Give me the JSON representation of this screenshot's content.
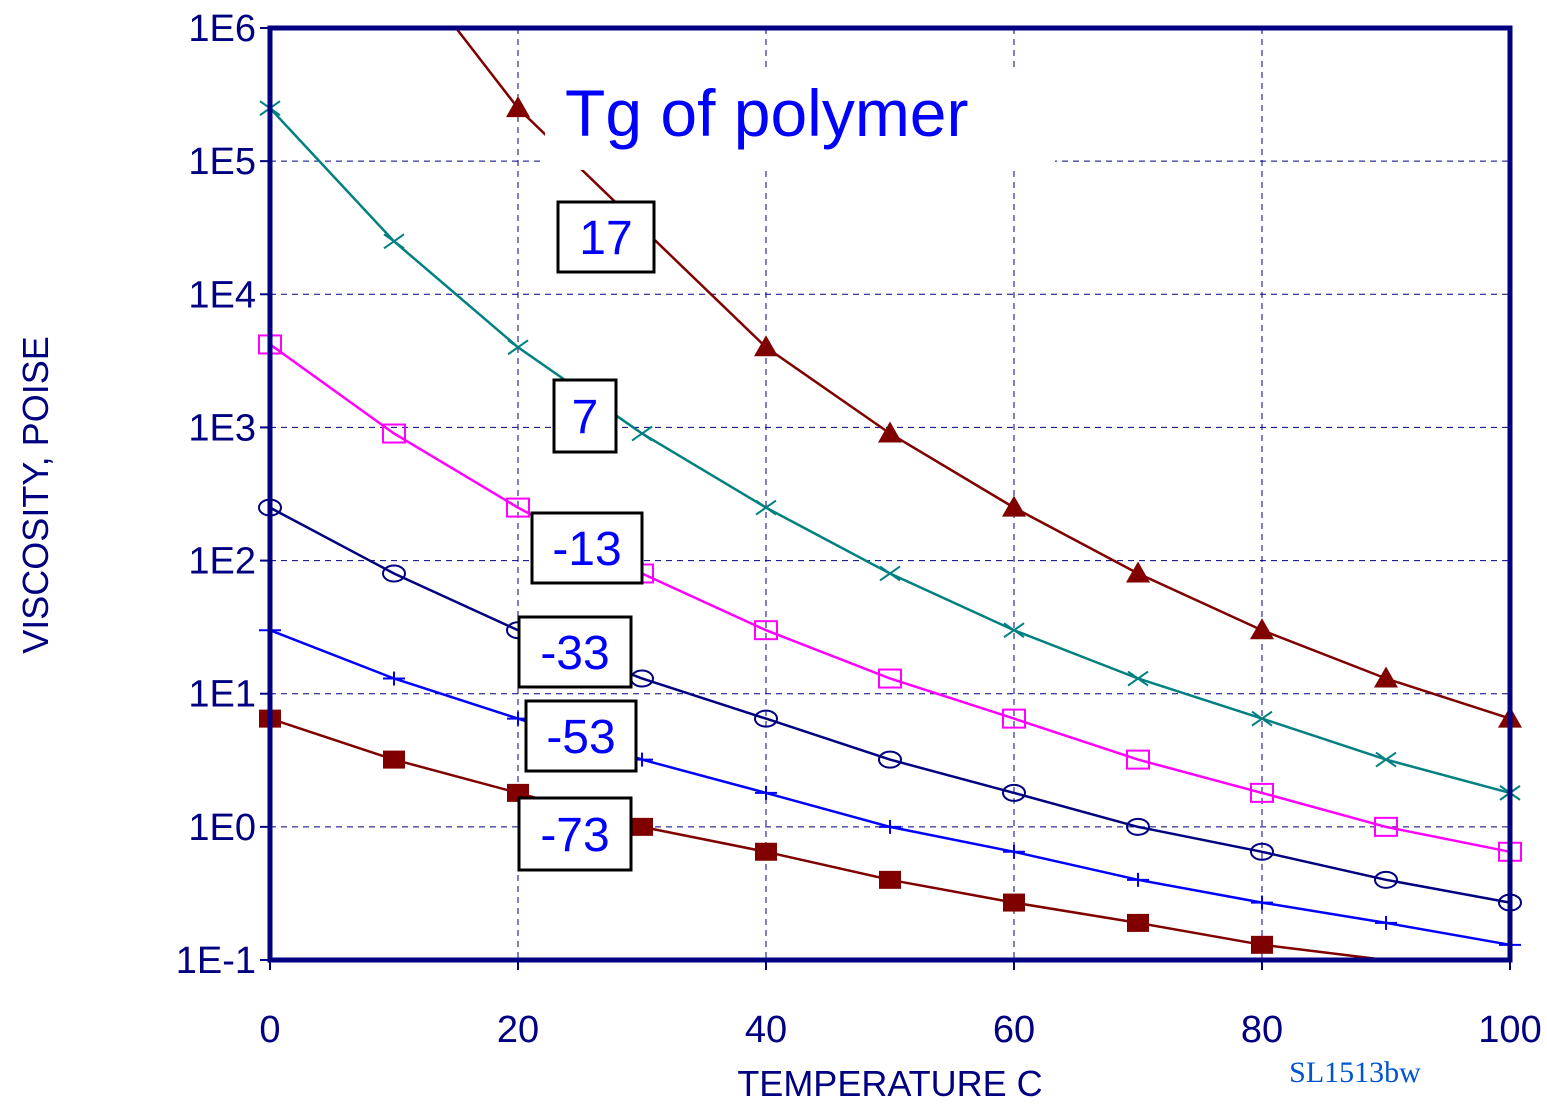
{
  "chart_data": {
    "type": "line",
    "title": "",
    "annotation": "Tg of polymer",
    "xlabel": "TEMPERATURE C",
    "ylabel": "VISCOSITY, POISE",
    "xlim": [
      0,
      100
    ],
    "ylim": [
      0.1,
      1000000
    ],
    "yscale": "log",
    "x_ticks": [
      "0",
      "20",
      "40",
      "60",
      "80",
      "100"
    ],
    "y_ticks": [
      "1E-1",
      "1E0",
      "1E1",
      "1E2",
      "1E3",
      "1E4",
      "1E5",
      "1E6"
    ],
    "grid": true,
    "x": [
      0,
      10,
      20,
      30,
      40,
      50,
      60,
      70,
      80,
      90,
      100
    ],
    "series": [
      {
        "name": "17",
        "color": "#800000",
        "marker": "filled-triangle",
        "values": [
          null,
          null,
          250000,
          null,
          4000,
          900,
          250,
          80,
          30,
          13,
          6.5
        ]
      },
      {
        "name": "7",
        "color": "#008080",
        "marker": "x",
        "values": [
          250000,
          25000,
          4000,
          900,
          250,
          80,
          30,
          13,
          6.5,
          3.2,
          1.8
        ]
      },
      {
        "name": "-13",
        "color": "#ff00ff",
        "marker": "open-square",
        "values": [
          4200,
          900,
          250,
          80,
          30,
          13,
          6.5,
          3.2,
          1.8,
          1.0,
          0.65
        ]
      },
      {
        "name": "-33",
        "color": "#000080",
        "marker": "open-circle",
        "values": [
          250,
          80,
          30,
          13,
          6.5,
          3.2,
          1.8,
          1.0,
          0.65,
          0.4,
          0.27
        ]
      },
      {
        "name": "-53",
        "color": "#0000ff",
        "marker": "plus",
        "values": [
          30,
          13,
          6.5,
          3.2,
          1.8,
          1.0,
          0.65,
          0.4,
          0.27,
          0.19,
          0.13
        ]
      },
      {
        "name": "-73",
        "color": "#800000",
        "marker": "filled-square",
        "values": [
          6.5,
          3.2,
          1.8,
          1.0,
          0.65,
          0.4,
          0.27,
          0.19,
          0.13,
          null,
          null
        ]
      }
    ],
    "footer": "SL1513bw"
  }
}
